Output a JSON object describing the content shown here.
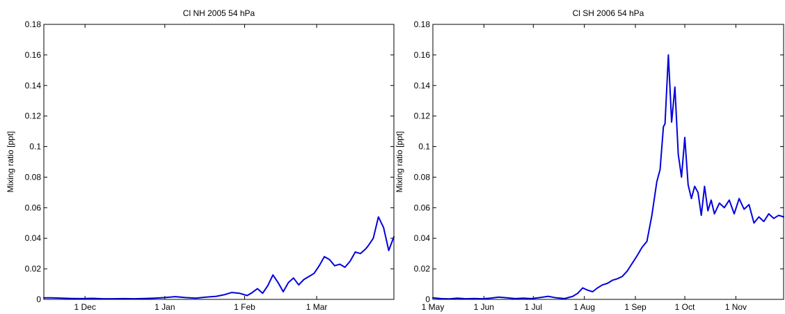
{
  "chart_data": [
    {
      "type": "line",
      "title": "Cl NH 2005 54 hPa",
      "xlabel": "",
      "ylabel": "Mixing ratio [ppt]",
      "ylim": [
        0,
        0.18
      ],
      "yticks": [
        "0",
        "0.02",
        "0.04",
        "0.06",
        "0.08",
        "0.1",
        "0.12",
        "0.14",
        "0.16",
        "0.18"
      ],
      "xlim": [
        "2005-11-15",
        "2006-03-31"
      ],
      "xticks": [
        {
          "date": "2005-12-01",
          "label": "1 Dec"
        },
        {
          "date": "2006-01-01",
          "label": "1 Jan"
        },
        {
          "date": "2006-02-01",
          "label": "1 Feb"
        },
        {
          "date": "2006-03-01",
          "label": "1 Mar"
        }
      ],
      "grid": false,
      "line_color": "#0000dd",
      "series": [
        {
          "x": [
            "2005-11-15",
            "2005-11-18",
            "2005-11-22",
            "2005-11-26",
            "2005-11-30",
            "2005-12-04",
            "2005-12-08",
            "2005-12-12",
            "2005-12-16",
            "2005-12-20",
            "2005-12-24",
            "2005-12-28",
            "2006-01-01",
            "2006-01-05",
            "2006-01-09",
            "2006-01-13",
            "2006-01-17",
            "2006-01-21",
            "2006-01-24",
            "2006-01-27",
            "2006-01-30",
            "2006-02-02",
            "2006-02-04",
            "2006-02-06",
            "2006-02-08",
            "2006-02-10",
            "2006-02-12",
            "2006-02-14",
            "2006-02-16",
            "2006-02-18",
            "2006-02-20",
            "2006-02-22",
            "2006-02-24",
            "2006-02-26",
            "2006-02-28",
            "2006-03-02",
            "2006-03-04",
            "2006-03-06",
            "2006-03-08",
            "2006-03-10",
            "2006-03-12",
            "2006-03-14",
            "2006-03-16",
            "2006-03-18",
            "2006-03-20",
            "2006-03-21",
            "2006-03-23",
            "2006-03-25",
            "2006-03-27",
            "2006-03-29",
            "2006-03-31"
          ],
          "values": [
            0.001,
            0.001,
            0.0008,
            0.0006,
            0.0005,
            0.0007,
            0.0004,
            0.0004,
            0.0005,
            0.0004,
            0.0006,
            0.0008,
            0.0012,
            0.0018,
            0.0012,
            0.0008,
            0.0015,
            0.002,
            0.003,
            0.0045,
            0.004,
            0.0025,
            0.0045,
            0.007,
            0.004,
            0.009,
            0.016,
            0.011,
            0.005,
            0.011,
            0.014,
            0.0095,
            0.013,
            0.015,
            0.017,
            0.022,
            0.028,
            0.026,
            0.022,
            0.023,
            0.021,
            0.025,
            0.031,
            0.03,
            0.033,
            0.035,
            0.04,
            0.054,
            0.047,
            0.032,
            0.041
          ]
        }
      ]
    },
    {
      "type": "line",
      "title": "Cl SH 2006 54 hPa",
      "xlabel": "",
      "ylabel": "Mixing ratio [ppt]",
      "ylim": [
        0,
        0.18
      ],
      "yticks": [
        "0",
        "0.02",
        "0.04",
        "0.06",
        "0.08",
        "0.1",
        "0.12",
        "0.14",
        "0.16",
        "0.18"
      ],
      "xlim": [
        "2006-05-01",
        "2006-11-30"
      ],
      "xticks": [
        {
          "date": "2006-05-01",
          "label": "1 May"
        },
        {
          "date": "2006-06-01",
          "label": "1 Jun"
        },
        {
          "date": "2006-07-01",
          "label": "1 Jul"
        },
        {
          "date": "2006-08-01",
          "label": "1 Aug"
        },
        {
          "date": "2006-09-01",
          "label": "1 Sep"
        },
        {
          "date": "2006-10-01",
          "label": "1 Oct"
        },
        {
          "date": "2006-11-01",
          "label": "1 Nov"
        }
      ],
      "grid": false,
      "line_color": "#0000dd",
      "series": [
        {
          "x": [
            "2006-05-01",
            "2006-05-06",
            "2006-05-11",
            "2006-05-16",
            "2006-05-21",
            "2006-05-26",
            "2006-05-31",
            "2006-06-05",
            "2006-06-10",
            "2006-06-15",
            "2006-06-20",
            "2006-06-25",
            "2006-06-30",
            "2006-07-05",
            "2006-07-10",
            "2006-07-15",
            "2006-07-20",
            "2006-07-25",
            "2006-07-28",
            "2006-07-31",
            "2006-08-03",
            "2006-08-06",
            "2006-08-09",
            "2006-08-12",
            "2006-08-15",
            "2006-08-18",
            "2006-08-21",
            "2006-08-24",
            "2006-08-27",
            "2006-08-30",
            "2006-09-02",
            "2006-09-05",
            "2006-09-08",
            "2006-09-11",
            "2006-09-14",
            "2006-09-16",
            "2006-09-18",
            "2006-09-19",
            "2006-09-21",
            "2006-09-23",
            "2006-09-25",
            "2006-09-27",
            "2006-09-29",
            "2006-10-01",
            "2006-10-03",
            "2006-10-05",
            "2006-10-07",
            "2006-10-09",
            "2006-10-11",
            "2006-10-13",
            "2006-10-15",
            "2006-10-17",
            "2006-10-19",
            "2006-10-22",
            "2006-10-25",
            "2006-10-28",
            "2006-10-31",
            "2006-11-03",
            "2006-11-06",
            "2006-11-09",
            "2006-11-12",
            "2006-11-15",
            "2006-11-18",
            "2006-11-21",
            "2006-11-24",
            "2006-11-27",
            "2006-11-30"
          ],
          "values": [
            0.001,
            0.0005,
            0.0003,
            0.0008,
            0.0004,
            0.0006,
            0.0004,
            0.0008,
            0.0015,
            0.001,
            0.0005,
            0.0008,
            0.0005,
            0.0012,
            0.002,
            0.001,
            0.0005,
            0.002,
            0.004,
            0.0075,
            0.006,
            0.005,
            0.0075,
            0.0095,
            0.0105,
            0.0125,
            0.0135,
            0.015,
            0.0185,
            0.0235,
            0.0285,
            0.034,
            0.038,
            0.055,
            0.077,
            0.085,
            0.113,
            0.115,
            0.16,
            0.116,
            0.139,
            0.095,
            0.08,
            0.106,
            0.075,
            0.066,
            0.074,
            0.07,
            0.055,
            0.074,
            0.058,
            0.065,
            0.056,
            0.063,
            0.06,
            0.065,
            0.056,
            0.066,
            0.059,
            0.062,
            0.05,
            0.054,
            0.051,
            0.056,
            0.053,
            0.055,
            0.054
          ]
        }
      ]
    }
  ]
}
